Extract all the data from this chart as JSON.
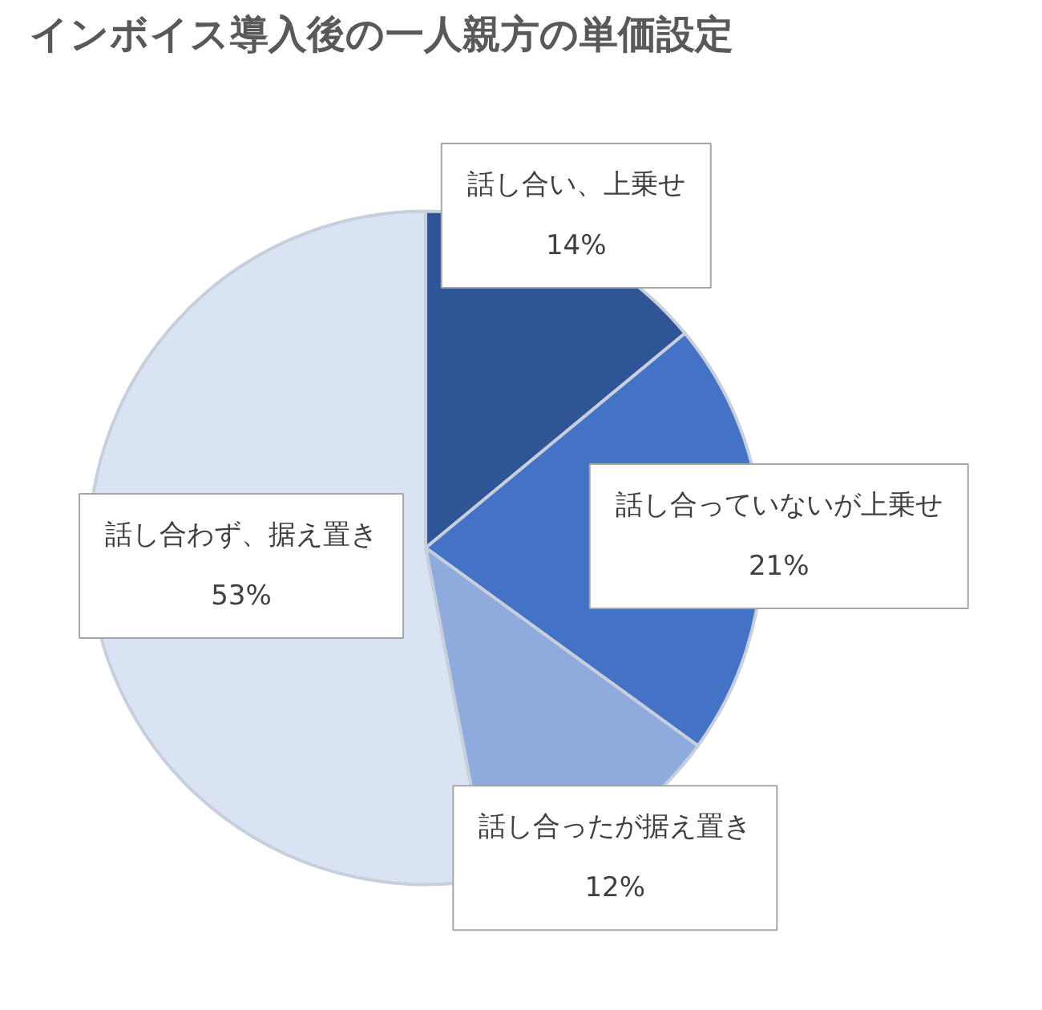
{
  "chart_data": {
    "type": "pie",
    "title": "インボイス導入後の一人親方の単価設定",
    "categories": [
      "話し合い、上乗せ",
      "話し合っていないが上乗せ",
      "話し合ったが据え置き",
      "話し合わず、据え置き"
    ],
    "values": [
      14,
      21,
      12,
      53
    ],
    "colors": [
      "#2f5597",
      "#4472c4",
      "#8faadc",
      "#dae3f3"
    ],
    "value_labels": [
      "14%",
      "21%",
      "12%",
      "53%"
    ]
  }
}
